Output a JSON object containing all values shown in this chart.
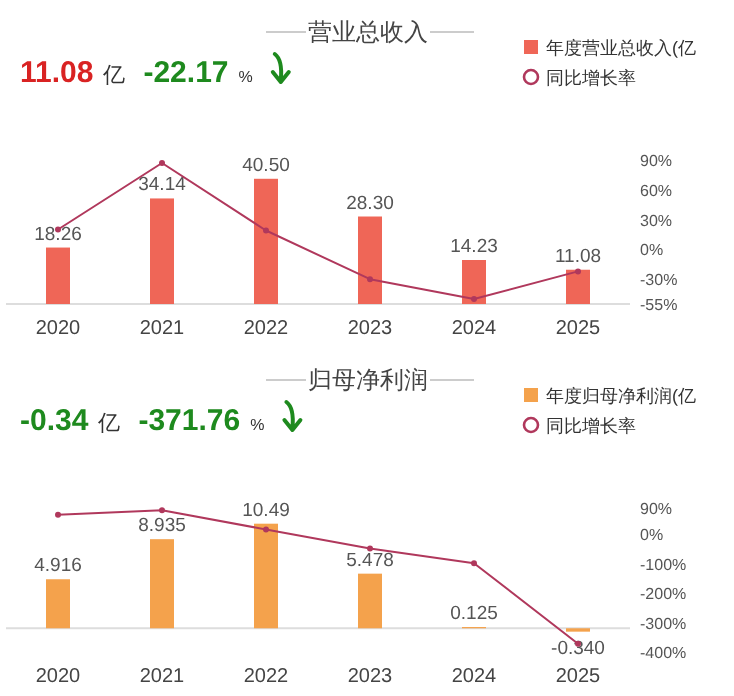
{
  "chart_data": [
    {
      "type": "bar",
      "title": "营业总收入",
      "annotations": [
        "11.08",
        "亿",
        "-22.17",
        "%"
      ],
      "categories": [
        "2020",
        "2021",
        "2022",
        "2023",
        "2024",
        "2025"
      ],
      "series": [
        {
          "name": "年度营业总收入(亿",
          "color": "#ef6657",
          "values": [
            18.26,
            34.14,
            40.5,
            28.3,
            14.23,
            11.08
          ],
          "value_labels": [
            "18.26",
            "34.14",
            "40.50",
            "28.30",
            "14.23",
            "11.08"
          ]
        },
        {
          "name": "同比增长率",
          "type": "line",
          "axis": "y2",
          "color": "#b0385c",
          "marker": "circle",
          "values": [
            20,
            87,
            19,
            -30,
            -50,
            -22.17
          ]
        }
      ],
      "y2lim": [
        -55,
        90
      ],
      "y2ticks": [
        {
          "value": 90,
          "label": "90%"
        },
        {
          "value": 60,
          "label": "60%"
        },
        {
          "value": 30,
          "label": "30%"
        },
        {
          "value": 0,
          "label": "0%"
        },
        {
          "value": -30,
          "label": "-30%"
        },
        {
          "value": -55,
          "label": "-55%"
        }
      ],
      "legend": "top right"
    },
    {
      "type": "bar",
      "title": "归母净利润",
      "annotations": [
        "-0.34",
        "亿",
        "-371.76",
        "%"
      ],
      "categories": [
        "2020",
        "2021",
        "2022",
        "2023",
        "2024",
        "2025"
      ],
      "series": [
        {
          "name": "年度归母净利润(亿",
          "color": "#f4a24c",
          "values": [
            4.916,
            8.935,
            10.49,
            5.478,
            0.125,
            -0.34
          ],
          "value_labels": [
            "4.916",
            "8.935",
            "10.49",
            "5.478",
            "0.125",
            "-0.340"
          ]
        },
        {
          "name": "同比增长率",
          "type": "line",
          "axis": "y2",
          "color": "#b0385c",
          "marker": "circle",
          "values": [
            67,
            82,
            17,
            -48,
            -98,
            -371.76
          ]
        }
      ],
      "y2lim": [
        -400,
        90
      ],
      "y2ticks": [
        {
          "value": 90,
          "label": "90%"
        },
        {
          "value": 0,
          "label": "0%"
        },
        {
          "value": -100,
          "label": "-100%"
        },
        {
          "value": -200,
          "label": "-200%"
        },
        {
          "value": -300,
          "label": "-300%"
        },
        {
          "value": -400,
          "label": "-400%"
        }
      ],
      "legend": "top right"
    }
  ]
}
